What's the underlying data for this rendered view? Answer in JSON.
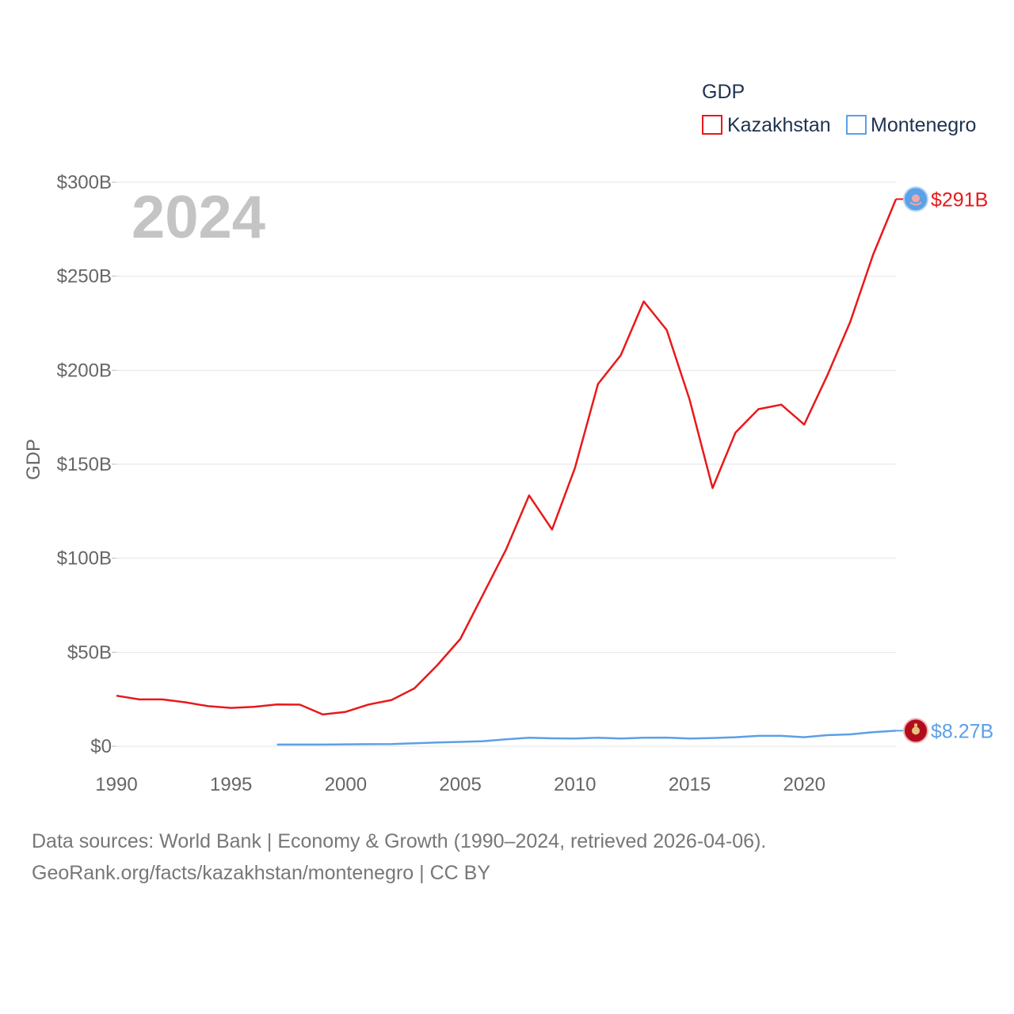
{
  "chart_data": {
    "type": "line",
    "title": "",
    "year_label": "2024",
    "xlabel": "",
    "ylabel": "GDP",
    "xlim": [
      1990,
      2024
    ],
    "ylim": [
      0,
      300
    ],
    "x_ticks": [
      1990,
      1995,
      2000,
      2005,
      2010,
      2015,
      2020
    ],
    "y_ticks": [
      0,
      50,
      100,
      150,
      200,
      250,
      300
    ],
    "y_tick_labels": [
      "$0",
      "$50B",
      "$100B",
      "$150B",
      "$200B",
      "$250B",
      "$300B"
    ],
    "legend_title": "GDP",
    "legend_position": "top-right",
    "series": [
      {
        "name": "Kazakhstan",
        "color": "#e8191b",
        "end_label": "$291B",
        "end_icon": "kazakhstan-flag-icon",
        "x": [
          1990,
          1991,
          1992,
          1993,
          1994,
          1995,
          1996,
          1997,
          1998,
          1999,
          2000,
          2001,
          2002,
          2003,
          2004,
          2005,
          2006,
          2007,
          2008,
          2009,
          2010,
          2011,
          2012,
          2013,
          2014,
          2015,
          2016,
          2017,
          2018,
          2019,
          2020,
          2021,
          2022,
          2023,
          2024
        ],
        "values": [
          26.9,
          24.9,
          24.9,
          23.4,
          21.3,
          20.4,
          21.0,
          22.2,
          22.1,
          16.9,
          18.3,
          22.2,
          24.6,
          30.8,
          43.2,
          57.1,
          81.0,
          104.8,
          133.4,
          115.3,
          148.0,
          192.6,
          208.0,
          236.6,
          221.4,
          184.4,
          137.3,
          166.8,
          179.3,
          181.7,
          171.1,
          197.1,
          225.5,
          261.4,
          291.0
        ]
      },
      {
        "name": "Montenegro",
        "color": "#5ca0e6",
        "end_label": "$8.27B",
        "end_icon": "montenegro-flag-icon",
        "x": [
          1997,
          1998,
          1999,
          2000,
          2001,
          2002,
          2003,
          2004,
          2005,
          2006,
          2007,
          2008,
          2009,
          2010,
          2011,
          2012,
          2013,
          2014,
          2015,
          2016,
          2017,
          2018,
          2019,
          2020,
          2021,
          2022,
          2023,
          2024
        ],
        "values": [
          0.9,
          0.9,
          0.9,
          1.0,
          1.1,
          1.2,
          1.6,
          2.0,
          2.3,
          2.7,
          3.7,
          4.5,
          4.2,
          4.1,
          4.5,
          4.1,
          4.5,
          4.6,
          4.1,
          4.4,
          4.8,
          5.5,
          5.5,
          4.8,
          5.9,
          6.3,
          7.5,
          8.27
        ]
      }
    ]
  },
  "footer": {
    "line1": "Data sources: World Bank | Economy & Growth (1990–2024, retrieved 2026-04-06).",
    "line2": "GeoRank.org/facts/kazakhstan/montenegro | CC BY"
  }
}
